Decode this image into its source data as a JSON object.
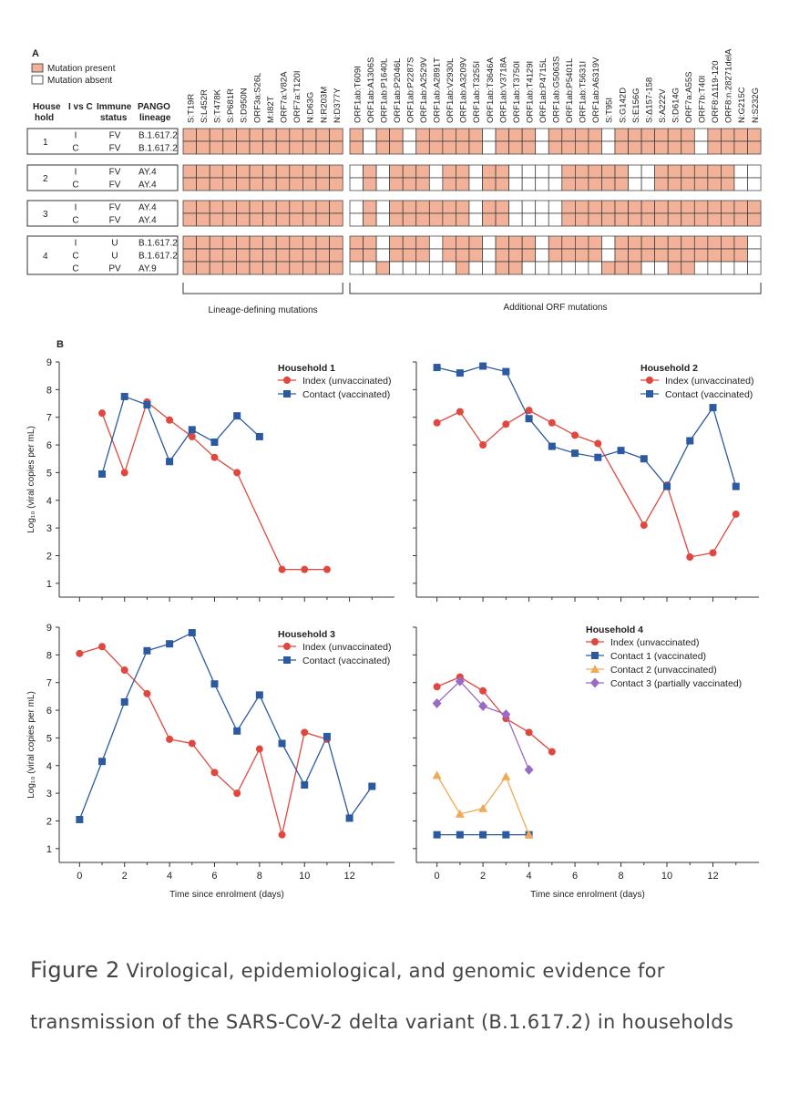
{
  "panel_a": {
    "label": "A",
    "legend": {
      "present": "Mutation present",
      "absent": "Mutation absent"
    },
    "colors": {
      "present": "#f2b29a",
      "absent": "#ffffff"
    },
    "headers": [
      "House hold",
      "I vs C",
      "Immune status",
      "PANGO lineage"
    ],
    "lineage_mutations": [
      "S:T19R",
      "S:L452R",
      "S:T478K",
      "S:P681R",
      "S:D950N",
      "ORF3a:S26L",
      "M:I82T",
      "ORF7a:V82A",
      "ORF7a:T120I",
      "N:D63G",
      "N:R203M",
      "N:D377Y"
    ],
    "additional_mutations": [
      "ORF1ab:T609I",
      "ORF1ab:A1306S",
      "ORF1ab:P1640L",
      "ORF1ab:P2046L",
      "ORF1ab:P2287S",
      "ORF1ab:A2529V",
      "ORF1ab:A2891T",
      "ORF1ab:V2930L",
      "ORF1ab:A3209V",
      "ORF1ab:T3255I",
      "ORF1ab:T3646A",
      "ORF1ab:V3718A",
      "ORF1ab:T3750I",
      "ORF1ab:T4129I",
      "ORF1ab:P4715L",
      "ORF1ab:G5063S",
      "ORF1ab:P5401L",
      "ORF1ab:T5631I",
      "ORF1ab:A6319V",
      "S:T95I",
      "S:G142D",
      "S:E156G",
      "S:Δ157-158",
      "S:A222V",
      "S:D614G",
      "ORF7a:A55S",
      "ORF7b:T40I",
      "ORF8:Δ119-120",
      "ORF8:n.28271delA",
      "N:G215C",
      "N:S232G"
    ],
    "bracket_lineage": "Lineage-defining mutations",
    "bracket_additional": "Additional ORF mutations",
    "households": [
      {
        "label": "1",
        "rows": [
          {
            "ivc": "I",
            "status": "FV",
            "lineage": "B.1.617.2",
            "lin": "111111111111",
            "add": "1011011111011101111011111101111"
          },
          {
            "ivc": "C",
            "status": "FV",
            "lineage": "B.1.617.2",
            "lin": "111111111111",
            "add": "1011011111011101111011111101111"
          }
        ]
      },
      {
        "label": "2",
        "rows": [
          {
            "ivc": "I",
            "status": "FV",
            "lineage": "AY.4",
            "lin": "111111111111",
            "add": "0101110110110000111110011111100"
          },
          {
            "ivc": "C",
            "status": "FV",
            "lineage": "AY.4",
            "lin": "111111111111",
            "add": "0101110110110000111110011111100"
          }
        ]
      },
      {
        "label": "3",
        "rows": [
          {
            "ivc": "I",
            "status": "FV",
            "lineage": "AY.4",
            "lin": "111111111111",
            "add": "0101111110110000111111111111111"
          },
          {
            "ivc": "C",
            "status": "FV",
            "lineage": "AY.4",
            "lin": "111111111111",
            "add": "0101111110110000111111111111111"
          }
        ]
      },
      {
        "label": "4",
        "rows": [
          {
            "ivc": "I",
            "status": "U",
            "lineage": "B.1.617.2",
            "lin": "111111111111",
            "add": "1101110111011101111011111111110"
          },
          {
            "ivc": "C",
            "status": "U",
            "lineage": "B.1.617.2",
            "lin": "111111111111",
            "add": "1101110111011101111011111111110"
          },
          {
            "ivc": "C",
            "status": "PV",
            "lineage": "AY.9",
            "lin": "111111111111",
            "add": "0010000010011000000111001100000"
          }
        ]
      }
    ]
  },
  "panel_b_label": "B",
  "caption": {
    "label": "Figure 2",
    "text": " Virological, epidemiological, and genomic evidence for transmission of the SARS-CoV-2 delta variant (B.1.617.2) in households"
  },
  "chart_data": [
    {
      "type": "line",
      "title": "Household 1",
      "ylabel": "Log₁₀ (viral copies per mL)",
      "xlabel": "",
      "xlim": [
        -0.5,
        14
      ],
      "ylim": [
        0.5,
        9
      ],
      "y_ticks": [
        1,
        2,
        3,
        4,
        5,
        6,
        7,
        8,
        9
      ],
      "x_ticks": [],
      "series": [
        {
          "name": "Index (unvaccinated)",
          "color": "#e0473f",
          "marker": "circle",
          "x": [
            1,
            2,
            3,
            4,
            5,
            6,
            7,
            9,
            10,
            11
          ],
          "y": [
            7.15,
            5.0,
            7.55,
            6.9,
            6.3,
            5.55,
            5.0,
            1.5,
            1.5,
            1.5
          ]
        },
        {
          "name": "Contact (vaccinated)",
          "color": "#2c5aa0",
          "marker": "square",
          "x": [
            1,
            2,
            3,
            4,
            5,
            6,
            7,
            8
          ],
          "y": [
            4.95,
            7.75,
            7.45,
            5.4,
            6.55,
            6.1,
            7.05,
            6.3
          ]
        }
      ]
    },
    {
      "type": "line",
      "title": "Household 2",
      "ylabel": "",
      "xlabel": "",
      "xlim": [
        -0.5,
        14
      ],
      "ylim": [
        0.5,
        9
      ],
      "y_ticks": [],
      "x_ticks": [],
      "series": [
        {
          "name": "Index (unvaccinated)",
          "color": "#e0473f",
          "marker": "circle",
          "x": [
            0,
            1,
            2,
            3,
            4,
            5,
            6,
            7,
            9,
            10,
            11,
            12,
            13
          ],
          "y": [
            6.8,
            7.2,
            6.0,
            6.75,
            7.25,
            6.8,
            6.35,
            6.05,
            3.1,
            4.55,
            1.95,
            2.1,
            3.5
          ]
        },
        {
          "name": "Contact (vaccinated)",
          "color": "#2c5aa0",
          "marker": "square",
          "x": [
            0,
            1,
            2,
            3,
            4,
            5,
            6,
            7,
            8,
            9,
            10,
            11,
            12,
            13
          ],
          "y": [
            8.8,
            8.6,
            8.85,
            8.65,
            6.95,
            5.95,
            5.7,
            5.55,
            5.8,
            5.5,
            4.5,
            6.15,
            7.35,
            4.5
          ]
        }
      ]
    },
    {
      "type": "line",
      "title": "Household 3",
      "ylabel": "Log₁₀ (viral copies per mL)",
      "xlabel": "Time since enrolment (days)",
      "xlim": [
        -0.5,
        14
      ],
      "ylim": [
        0.5,
        9
      ],
      "y_ticks": [
        1,
        2,
        3,
        4,
        5,
        6,
        7,
        8,
        9
      ],
      "x_ticks": [
        0,
        2,
        4,
        6,
        8,
        10,
        12
      ],
      "series": [
        {
          "name": "Index (unvaccinated)",
          "color": "#e0473f",
          "marker": "circle",
          "x": [
            0,
            1,
            2,
            3,
            4,
            5,
            6,
            7,
            8,
            9,
            10,
            11
          ],
          "y": [
            8.05,
            8.3,
            7.45,
            6.6,
            4.95,
            4.8,
            3.75,
            3.0,
            4.6,
            1.5,
            5.2,
            4.95
          ]
        },
        {
          "name": "Contact (vaccinated)",
          "color": "#2c5aa0",
          "marker": "square",
          "x": [
            0,
            1,
            2,
            3,
            4,
            5,
            6,
            7,
            8,
            9,
            10,
            11,
            12,
            13
          ],
          "y": [
            2.05,
            4.15,
            6.3,
            8.15,
            8.4,
            8.8,
            6.95,
            5.25,
            6.55,
            4.8,
            3.3,
            5.05,
            2.1,
            3.25
          ]
        }
      ]
    },
    {
      "type": "line",
      "title": "Household 4",
      "ylabel": "",
      "xlabel": "Time since enrolment (days)",
      "xlim": [
        -0.5,
        14
      ],
      "ylim": [
        0.5,
        9
      ],
      "y_ticks": [],
      "x_ticks": [
        0,
        2,
        4,
        6,
        8,
        10,
        12
      ],
      "series": [
        {
          "name": "Index (unvaccinated)",
          "color": "#e0473f",
          "marker": "circle",
          "x": [
            0,
            1,
            2,
            3,
            4,
            5
          ],
          "y": [
            6.85,
            7.2,
            6.7,
            5.7,
            5.2,
            4.5
          ]
        },
        {
          "name": "Contact 1 (vaccinated)",
          "color": "#2c5aa0",
          "marker": "square",
          "x": [
            0,
            1,
            2,
            3,
            4
          ],
          "y": [
            1.5,
            1.5,
            1.5,
            1.5,
            1.5
          ]
        },
        {
          "name": "Contact 2 (unvaccinated)",
          "color": "#f0aa55",
          "marker": "triangle",
          "x": [
            0,
            1,
            2,
            3,
            4
          ],
          "y": [
            3.65,
            2.25,
            2.45,
            3.6,
            1.5
          ]
        },
        {
          "name": "Contact 3 (partially vaccinated)",
          "color": "#9a6bc5",
          "marker": "diamond",
          "x": [
            0,
            1,
            2,
            3,
            4
          ],
          "y": [
            6.25,
            7.05,
            6.15,
            5.85,
            3.85
          ]
        }
      ]
    }
  ]
}
